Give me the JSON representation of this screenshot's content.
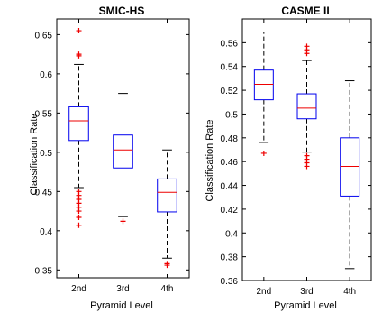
{
  "colors": {
    "box": "#0000ee",
    "median": "#ee0000",
    "whisker": "#000000",
    "outlier": "#ee0000",
    "axis": "#000000"
  },
  "chart_data": [
    {
      "type": "box",
      "title": "SMIC-HS",
      "xlabel": "Pyramid Level",
      "ylabel": "Classification Rate",
      "categories": [
        "2nd",
        "3rd",
        "4th"
      ],
      "ylim": [
        0.34,
        0.67
      ],
      "yticks": [
        0.35,
        0.4,
        0.45,
        0.5,
        0.55,
        0.6,
        0.65
      ],
      "ytick_labels": [
        "0.35",
        "0.4",
        "0.45",
        "0.5",
        "0.55",
        "0.6",
        "0.65"
      ],
      "grid": false,
      "boxes": [
        {
          "whisker_low": 0.455,
          "q1": 0.515,
          "median": 0.54,
          "q3": 0.558,
          "whisker_high": 0.612,
          "outliers": [
            0.655,
            0.625,
            0.623,
            0.45,
            0.445,
            0.44,
            0.435,
            0.43,
            0.425,
            0.417,
            0.407
          ]
        },
        {
          "whisker_low": 0.418,
          "q1": 0.48,
          "median": 0.503,
          "q3": 0.522,
          "whisker_high": 0.575,
          "outliers": [
            0.412
          ]
        },
        {
          "whisker_low": 0.365,
          "q1": 0.424,
          "median": 0.449,
          "q3": 0.466,
          "whisker_high": 0.503,
          "outliers": [
            0.358,
            0.356
          ]
        }
      ]
    },
    {
      "type": "box",
      "title": "CASME II",
      "xlabel": "Pyramid Level",
      "ylabel": "Classification Rate",
      "categories": [
        "2nd",
        "3rd",
        "4th"
      ],
      "ylim": [
        0.36,
        0.58
      ],
      "yticks": [
        0.36,
        0.38,
        0.4,
        0.42,
        0.44,
        0.46,
        0.48,
        0.5,
        0.52,
        0.54,
        0.56
      ],
      "ytick_labels": [
        "0.36",
        "0.38",
        "0.4",
        "0.42",
        "0.44",
        "0.46",
        "0.48",
        "0.5",
        "0.52",
        "0.54",
        "0.56"
      ],
      "grid": false,
      "boxes": [
        {
          "whisker_low": 0.476,
          "q1": 0.512,
          "median": 0.525,
          "q3": 0.537,
          "whisker_high": 0.569,
          "outliers": [
            0.467
          ]
        },
        {
          "whisker_low": 0.468,
          "q1": 0.496,
          "median": 0.505,
          "q3": 0.517,
          "whisker_high": 0.545,
          "outliers": [
            0.557,
            0.554,
            0.551,
            0.465,
            0.462,
            0.459,
            0.456
          ]
        },
        {
          "whisker_low": 0.37,
          "q1": 0.431,
          "median": 0.456,
          "q3": 0.48,
          "whisker_high": 0.528,
          "outliers": []
        }
      ]
    }
  ]
}
